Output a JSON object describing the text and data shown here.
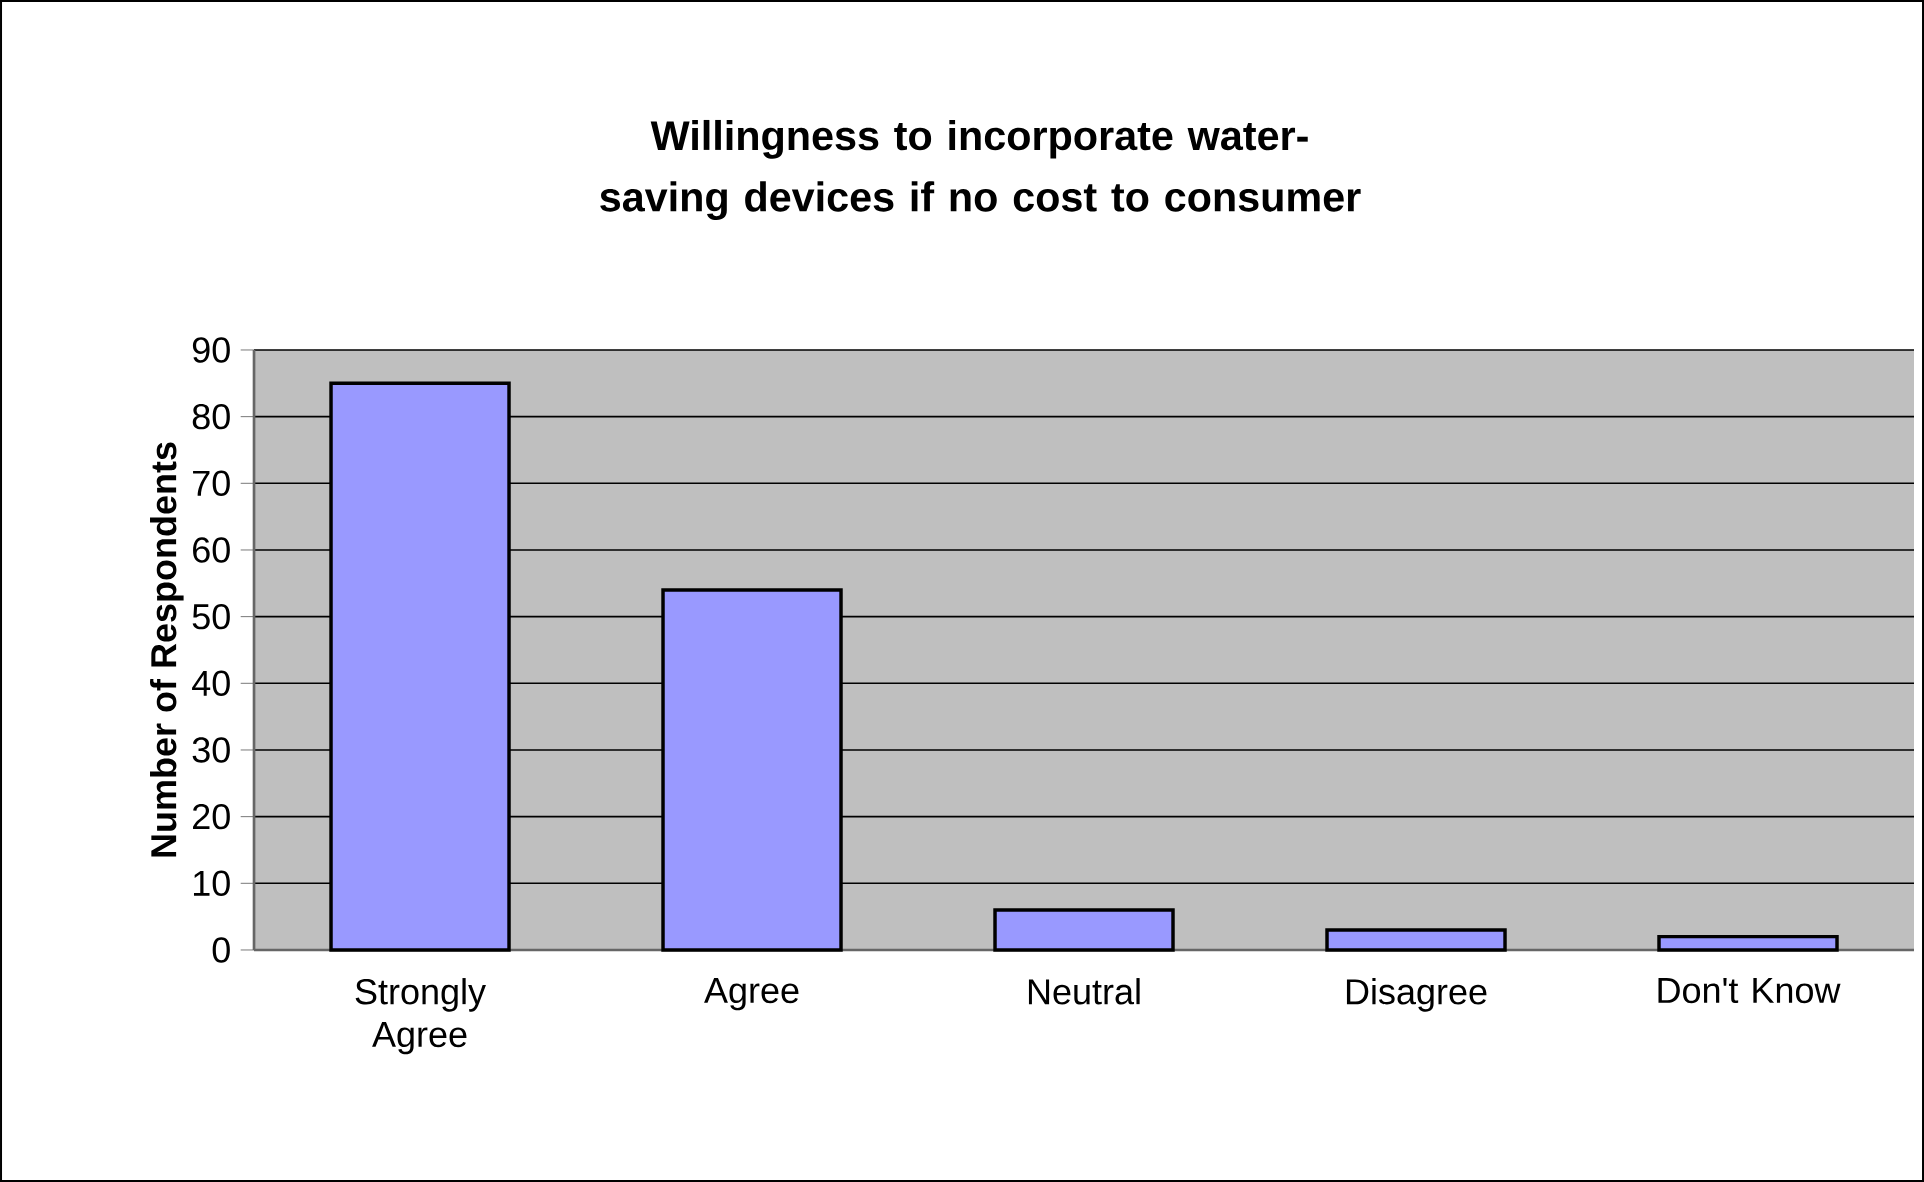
{
  "chart_data": {
    "type": "bar",
    "title": "Willingness to incorporate water-saving devices if no cost to consumer",
    "ylabel": "Number of Respondents",
    "categories": [
      "Strongly Agree",
      "Agree",
      "Neutral",
      "Disagree",
      "Don't Know"
    ],
    "values": [
      85,
      54,
      6,
      3,
      2
    ],
    "color": "#9999ff",
    "ylim": [
      0,
      90
    ],
    "yticks": [
      0,
      10,
      20,
      30,
      40,
      50,
      60,
      70,
      80,
      90
    ],
    "grid": "y"
  }
}
